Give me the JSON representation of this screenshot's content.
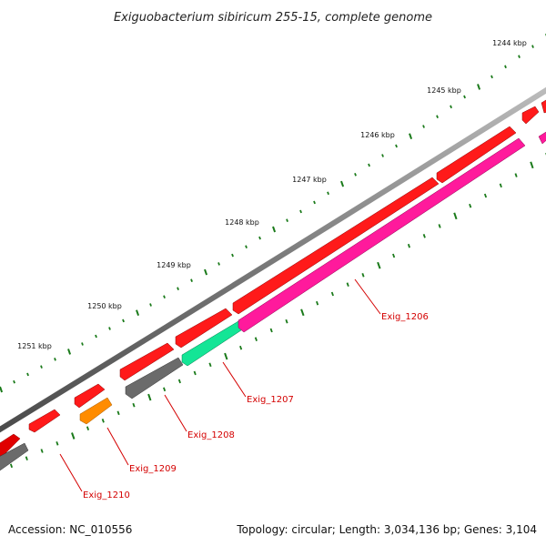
{
  "title": "Exiguobacterium sibiricum 255-15, complete genome",
  "ticks": [
    {
      "label": "1244 kbp"
    },
    {
      "label": "1245 kbp"
    },
    {
      "label": "1246 kbp"
    },
    {
      "label": "1247 kbp"
    },
    {
      "label": "1248 kbp"
    },
    {
      "label": "1249 kbp"
    },
    {
      "label": "1250 kbp"
    },
    {
      "label": "1251 kbp"
    }
  ],
  "genes": [
    {
      "name": "Exig_1206",
      "color": "#ff1493"
    },
    {
      "name": "Exig_1207",
      "color": "#00e08a"
    },
    {
      "name": "Exig_1208",
      "color": "#666666"
    },
    {
      "name": "Exig_1209",
      "color": "#ff8c00"
    },
    {
      "name": "Exig_1210",
      "color": "#666666"
    }
  ],
  "colors": {
    "forward_cds": "#ff0000",
    "backbone": "#888888",
    "tick": "#1a7a1a",
    "label": "#d40000"
  },
  "footer": {
    "accession": "Accession: NC_010556",
    "summary": "Topology: circular; Length: 3,034,136 bp; Genes: 3,104"
  }
}
